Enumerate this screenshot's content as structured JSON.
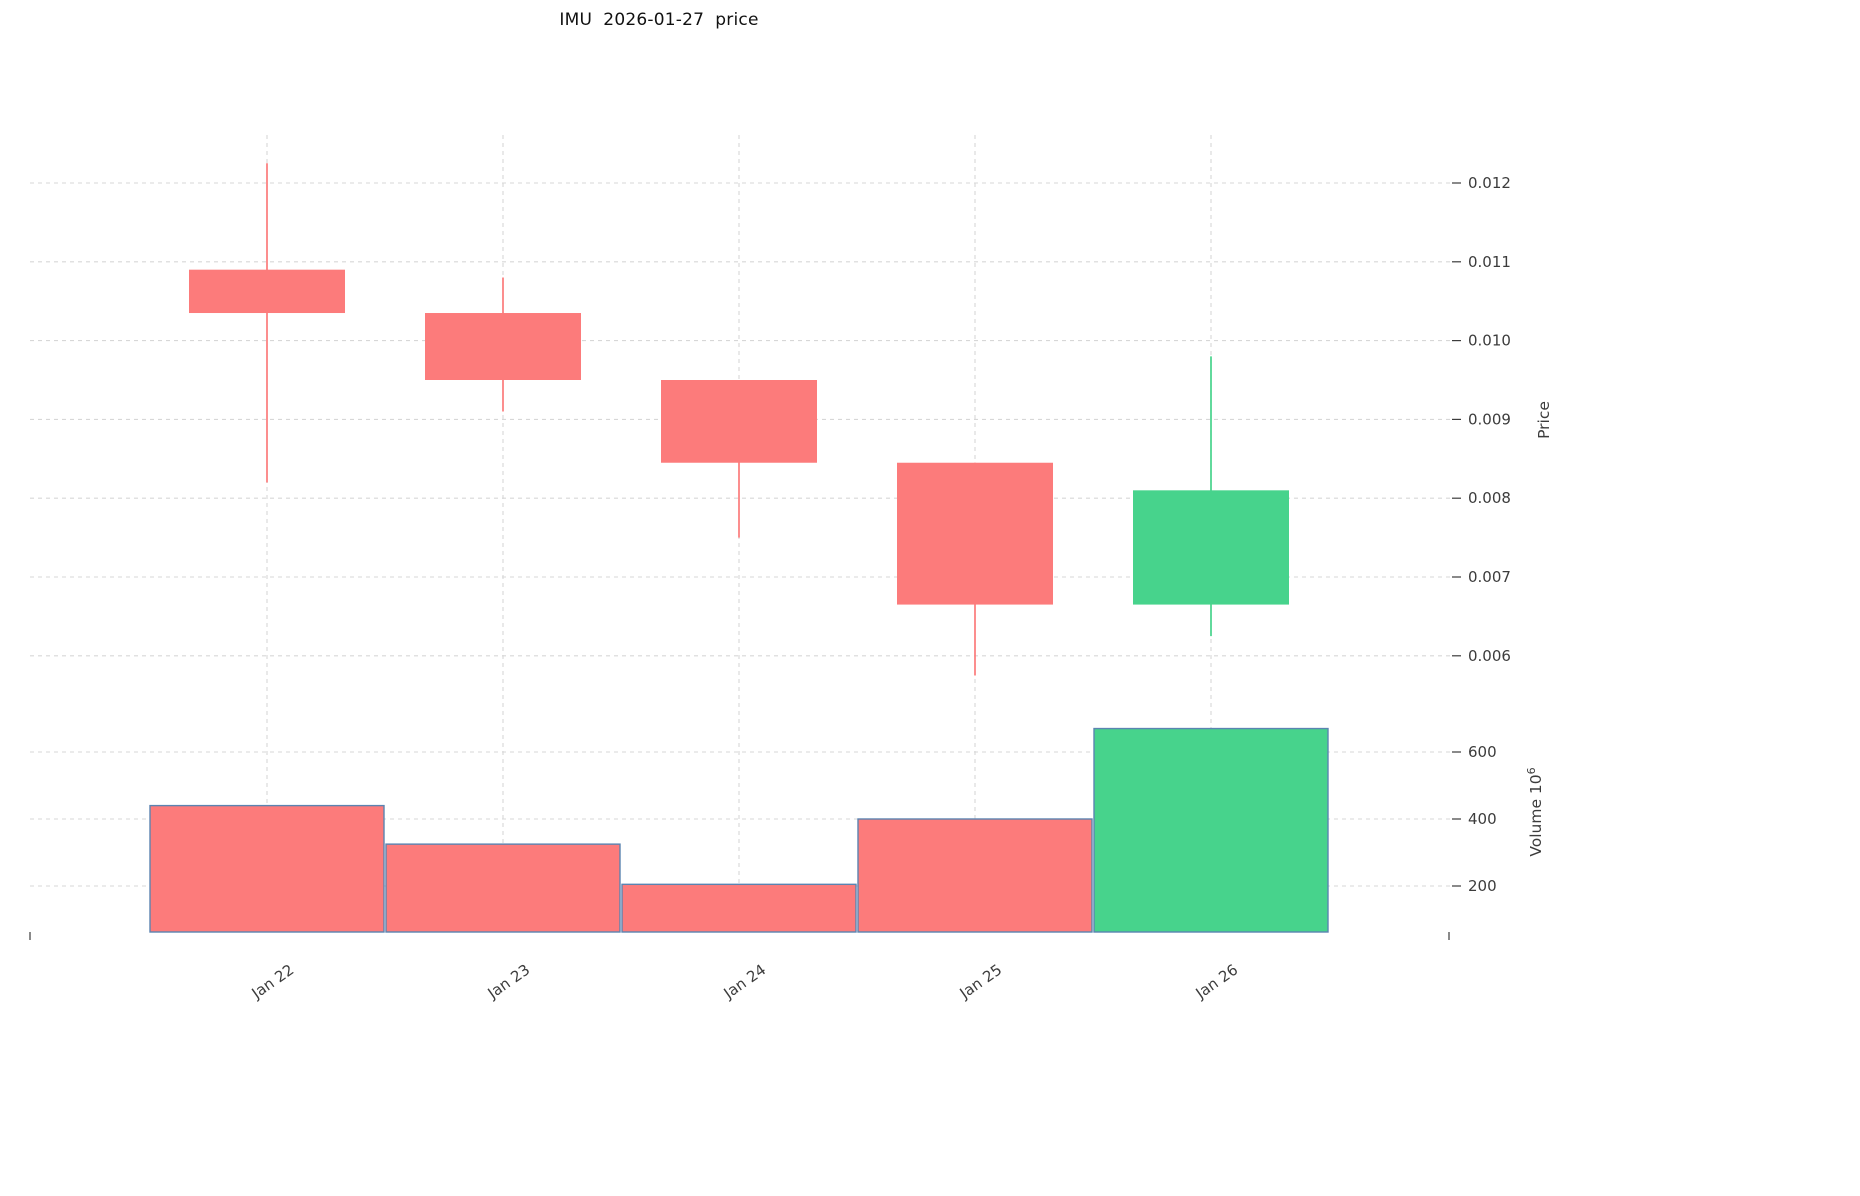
{
  "title": "IMU  2026-01-27  price",
  "axes": {
    "price_label": "Price",
    "volume_label_prefix": "Volume  10",
    "volume_label_exp": "6",
    "price_ticks": [
      0.012,
      0.011,
      0.01,
      0.009,
      0.008,
      0.007,
      0.006
    ],
    "volume_ticks": [
      600,
      400,
      200
    ]
  },
  "colors": {
    "up": "#47d38c",
    "down": "#fc7b7b",
    "volume_edge": "#5b84b1",
    "grid": "#d7d7d7",
    "text": "#3c3c3c"
  },
  "chart_data": {
    "type": "candlestick",
    "title": "IMU  2026-01-27  price",
    "symbol": "IMU",
    "date_shown": "2026-01-27",
    "categories": [
      "Jan 22",
      "Jan 23",
      "Jan 24",
      "Jan 25",
      "Jan 26"
    ],
    "ohlc": [
      {
        "date": "Jan 22",
        "open": 0.0109,
        "high": 0.01225,
        "low": 0.0082,
        "close": 0.01035
      },
      {
        "date": "Jan 23",
        "open": 0.01035,
        "high": 0.0108,
        "low": 0.0091,
        "close": 0.0095
      },
      {
        "date": "Jan 24",
        "open": 0.0095,
        "high": 0.0095,
        "low": 0.0075,
        "close": 0.00845
      },
      {
        "date": "Jan 25",
        "open": 0.00845,
        "high": 0.00845,
        "low": 0.00575,
        "close": 0.00665
      },
      {
        "date": "Jan 26",
        "open": 0.00665,
        "high": 0.0098,
        "low": 0.00625,
        "close": 0.0081
      }
    ],
    "volume_millions": [
      440,
      325,
      205,
      400,
      670
    ],
    "ylabel": "Price",
    "volume_ylabel": "Volume ×10⁶",
    "price_axis_range": [
      0.0055,
      0.0125
    ],
    "volume_axis_ticks": [
      200,
      400,
      600
    ],
    "grid": true,
    "legend": "none",
    "up_color": "#47d38c",
    "down_color": "#fc7b7b"
  }
}
